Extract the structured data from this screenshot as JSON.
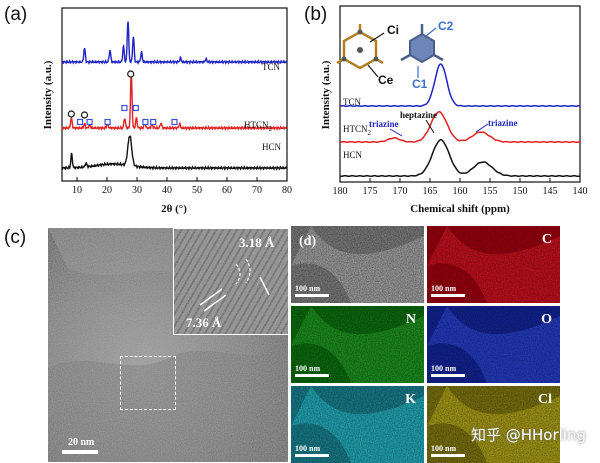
{
  "panels": {
    "a": "(a)",
    "b": "(b)",
    "c": "(c)",
    "d": "(d)"
  },
  "chart_data": [
    {
      "type": "line",
      "panel": "a",
      "xlabel": "2θ (°)",
      "ylabel": "Intensity (a.u.)",
      "xlim": [
        5,
        80
      ],
      "xticks": [
        10,
        20,
        30,
        40,
        50,
        60,
        70,
        80
      ],
      "series": [
        {
          "name": "TCN",
          "color": "#1f24c4",
          "peaks": [
            12.5,
            21,
            25.5,
            27,
            28.8,
            31.5,
            44.5,
            53
          ]
        },
        {
          "name": "HTCN2",
          "color": "#e32020",
          "peaks": [
            8.1,
            12.5,
            14.2,
            20.2,
            25.9,
            28.1,
            29.8,
            32.6,
            35,
            38,
            44.2
          ]
        },
        {
          "name": "HCN",
          "color": "#111111",
          "peaks": [
            8.2,
            13,
            27.6
          ]
        }
      ],
      "markers": {
        "circles": [
          8.1,
          12.5,
          27.9
        ],
        "squares": [
          11,
          14.2,
          20.2,
          25.8,
          29.6,
          32.8,
          35.4,
          42.5
        ]
      }
    },
    {
      "type": "line",
      "panel": "b",
      "xlabel": "Chemical shift (ppm)",
      "ylabel": "Intensity (a.u.)",
      "xlim": [
        180,
        140
      ],
      "xticks": [
        140,
        145,
        150,
        155,
        160,
        165,
        170,
        175,
        180
      ],
      "series": [
        {
          "name": "TCN",
          "color": "#1f24c4",
          "peaks": [
            163.2
          ]
        },
        {
          "name": "HTCN2",
          "color": "#e32020",
          "peaks": [
            156.5,
            163.5,
            171
          ]
        },
        {
          "name": "HCN",
          "color": "#111111",
          "peaks": [
            156.2,
            163.2
          ]
        }
      ],
      "annotations": [
        "heptazine",
        "triazine",
        "triazine"
      ],
      "structure_labels": [
        "Ci",
        "Ce",
        "C2",
        "C1"
      ]
    }
  ],
  "tem": {
    "scalebar": "20 nm",
    "inset_spacing_1": "3.18 Å",
    "inset_spacing_2": "7.36 Å"
  },
  "eds_maps": [
    {
      "label": "",
      "scalebar": "100 nm",
      "color": "#8a8a8a",
      "highlight": "#d0d0d0"
    },
    {
      "label": "C",
      "scalebar": "100 nm",
      "color": "#b00010",
      "highlight": "#ff2030"
    },
    {
      "label": "N",
      "scalebar": "100 nm",
      "color": "#0c7a10",
      "highlight": "#30c030"
    },
    {
      "label": "O",
      "scalebar": "100 nm",
      "color": "#1428a8",
      "highlight": "#3a58ff"
    },
    {
      "label": "K",
      "scalebar": "100 nm",
      "color": "#1a8c9c",
      "highlight": "#30e0ee"
    },
    {
      "label": "Cl",
      "scalebar": "100 nm",
      "color": "#8a8010",
      "highlight": "#e0d020"
    }
  ],
  "watermark": "知乎 @HHorling"
}
